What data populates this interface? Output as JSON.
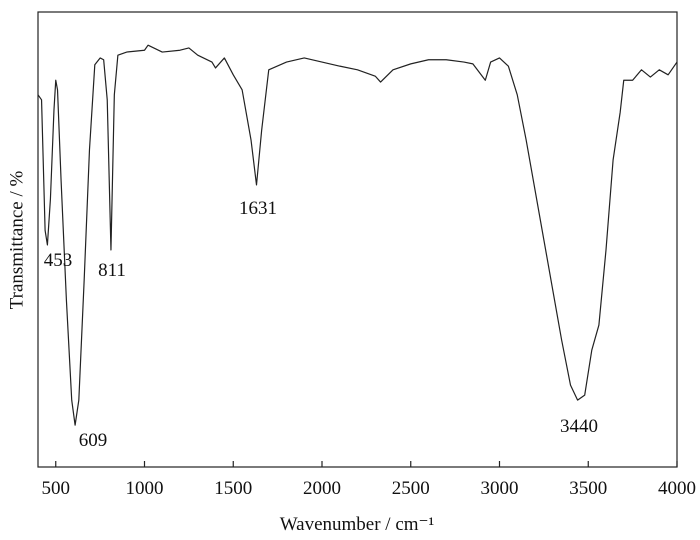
{
  "chart_data": {
    "type": "line",
    "x_label": "Wavenumber / cm⁻¹",
    "y_label": "Transmittance / %",
    "x": [
      400,
      420,
      440,
      453,
      470,
      490,
      500,
      510,
      530,
      560,
      590,
      609,
      630,
      660,
      690,
      720,
      750,
      770,
      790,
      811,
      830,
      850,
      900,
      1000,
      1020,
      1100,
      1200,
      1250,
      1300,
      1380,
      1400,
      1450,
      1500,
      1550,
      1600,
      1631,
      1660,
      1700,
      1800,
      1900,
      2000,
      2100,
      2200,
      2300,
      2330,
      2400,
      2500,
      2600,
      2700,
      2800,
      2850,
      2920,
      2950,
      3000,
      3050,
      3100,
      3150,
      3200,
      3250,
      3300,
      3350,
      3400,
      3440,
      3480,
      3520,
      3560,
      3600,
      3640,
      3680,
      3700,
      3750,
      3800,
      3850,
      3900,
      3950,
      4000
    ],
    "series": [
      {
        "color": "#222222",
        "values": [
          81.8,
          80.7,
          52,
          48.8,
          58.9,
          78.5,
          85,
          82.9,
          63,
          36.7,
          14.7,
          9.2,
          14.7,
          41,
          69.7,
          88.4,
          89.9,
          89.5,
          80.7,
          47.7,
          81.8,
          90.5,
          91.2,
          91.6,
          92.7,
          91.2,
          91.6,
          92.1,
          90.5,
          89,
          87.7,
          89.9,
          86.2,
          82.9,
          71.9,
          62,
          74,
          87.3,
          89,
          89.9,
          89,
          88.1,
          87.3,
          85.9,
          84.6,
          87.3,
          88.6,
          89.5,
          89.5,
          89,
          88.6,
          85,
          89,
          89.9,
          88.1,
          81.8,
          71.9,
          60.9,
          49.9,
          38.9,
          27.9,
          18,
          14.7,
          15.8,
          25.7,
          31.2,
          47.7,
          67.5,
          78,
          85,
          85,
          87.3,
          85.7,
          87.3,
          86.2,
          89
        ]
      }
    ],
    "annotations": [
      "453",
      "609",
      "811",
      "1631",
      "3440"
    ],
    "xlim": [
      400,
      4000
    ],
    "xticks": [
      500,
      1000,
      1500,
      2000,
      2500,
      3000,
      3500,
      4000
    ],
    "ylim": [
      0,
      100
    ]
  }
}
